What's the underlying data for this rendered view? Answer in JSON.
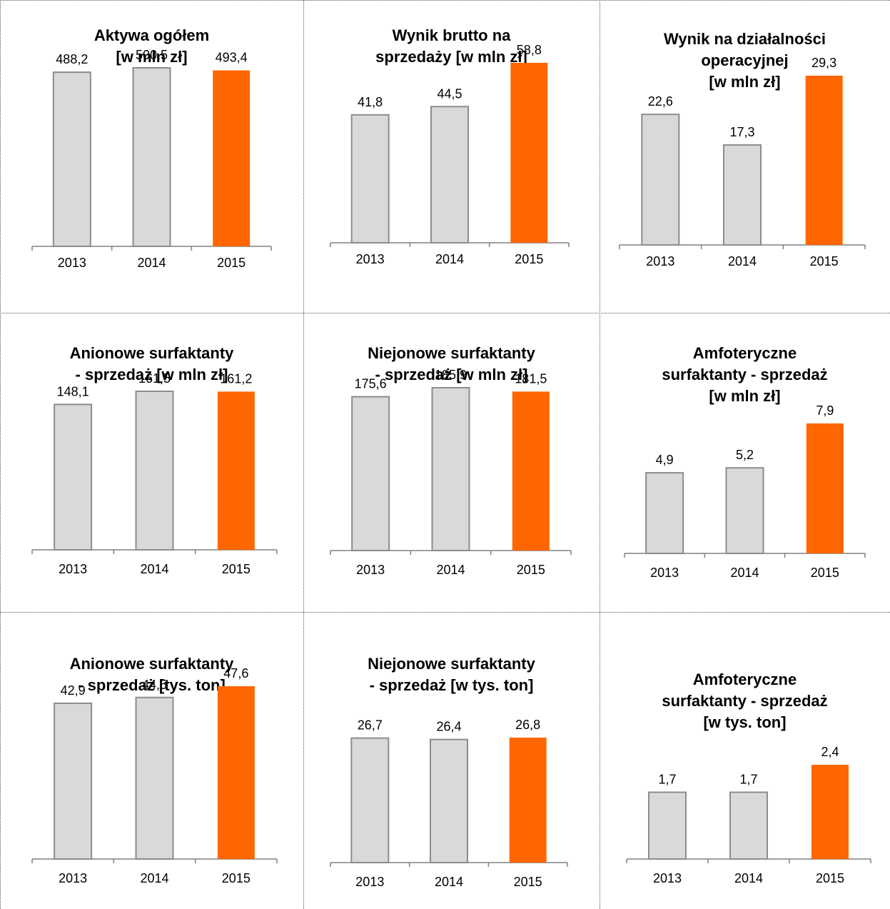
{
  "colors": {
    "past": "#d9d9d9",
    "past_border": "#8c8c8c",
    "current": "#ff6600",
    "axis": "#808080"
  },
  "chart_data": [
    {
      "type": "bar",
      "title_lines": [
        "Aktywa ogółem",
        "[w mln zł]"
      ],
      "categories": [
        "2013",
        "2014",
        "2015"
      ],
      "values": [
        488.2,
        500.5,
        493.4
      ],
      "value_labels": [
        "488,2",
        "500,5",
        "493,4"
      ]
    },
    {
      "type": "bar",
      "title_lines": [
        "Wynik brutto na",
        "sprzedaży [w mln zł]"
      ],
      "categories": [
        "2013",
        "2014",
        "2015"
      ],
      "values": [
        41.8,
        44.5,
        58.8
      ],
      "value_labels": [
        "41,8",
        "44,5",
        "58,8"
      ]
    },
    {
      "type": "bar",
      "title_lines": [
        "Wynik na działalności",
        "operacyjnej",
        "[w mln zł]"
      ],
      "categories": [
        "2013",
        "2014",
        "2015"
      ],
      "values": [
        22.6,
        17.3,
        29.3
      ],
      "value_labels": [
        "22,6",
        "17,3",
        "29,3"
      ]
    },
    {
      "type": "bar",
      "title_lines": [
        "Anionowe surfaktanty",
        "- sprzedaż [w mln zł]"
      ],
      "categories": [
        "2013",
        "2014",
        "2015"
      ],
      "values": [
        148.1,
        161.5,
        161.2
      ],
      "value_labels": [
        "148,1",
        "161,5",
        "161,2"
      ]
    },
    {
      "type": "bar",
      "title_lines": [
        "Niejonowe surfaktanty",
        "- sprzedaż [w mln zł]"
      ],
      "categories": [
        "2013",
        "2014",
        "2015"
      ],
      "values": [
        175.6,
        185.9,
        181.5
      ],
      "value_labels": [
        "175,6",
        "185,9",
        "181,5"
      ]
    },
    {
      "type": "bar",
      "title_lines": [
        "Amfoteryczne",
        "surfaktanty - sprzedaż",
        "[w mln zł]"
      ],
      "categories": [
        "2013",
        "2014",
        "2015"
      ],
      "values": [
        4.9,
        5.2,
        7.9
      ],
      "value_labels": [
        "4,9",
        "5,2",
        "7,9"
      ]
    },
    {
      "type": "bar",
      "title_lines": [
        "Anionowe surfaktanty",
        "- sprzedaż [tys. ton]"
      ],
      "categories": [
        "2013",
        "2014",
        "2015"
      ],
      "values": [
        42.9,
        44.5,
        47.6
      ],
      "value_labels": [
        "42,9",
        "44,5",
        "47,6"
      ]
    },
    {
      "type": "bar",
      "title_lines": [
        "Niejonowe surfaktanty",
        "- sprzedaż [w tys. ton]"
      ],
      "categories": [
        "2013",
        "2014",
        "2015"
      ],
      "values": [
        26.7,
        26.4,
        26.8
      ],
      "value_labels": [
        "26,7",
        "26,4",
        "26,8"
      ]
    },
    {
      "type": "bar",
      "title_lines": [
        "Amfoteryczne",
        "surfaktanty - sprzedaż",
        "[w tys. ton]"
      ],
      "categories": [
        "2013",
        "2014",
        "2015"
      ],
      "values": [
        1.7,
        1.7,
        2.4
      ],
      "value_labels": [
        "1,7",
        "1,7",
        "2,4"
      ]
    }
  ]
}
